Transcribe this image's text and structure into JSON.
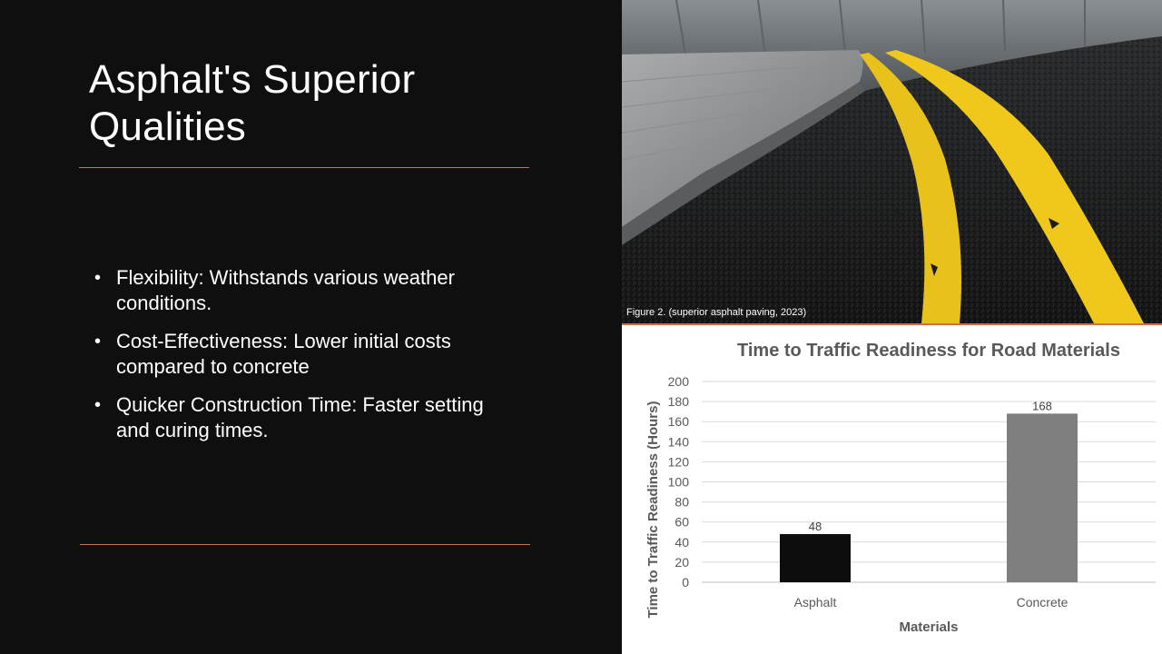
{
  "slide": {
    "title_line1": "Asphalt's Superior",
    "title_line2": "Qualities",
    "bullets": [
      "Flexibility: Withstands various weather conditions.",
      "Cost-Effectiveness: Lower initial costs compared to concrete",
      "Quicker Construction Time: Faster setting and curing times."
    ],
    "bullet_glyph": "•",
    "accent_color": "#c8734a"
  },
  "photo": {
    "caption": "Figure 2. (superior asphalt paving, 2023)"
  },
  "chart_data": {
    "type": "bar",
    "title": "Time to Traffic Readiness for Road Materials",
    "xlabel": "Materials",
    "ylabel": "Time to Traffic Readiness (Hours)",
    "categories": [
      "Asphalt",
      "Concrete"
    ],
    "values": [
      48,
      168
    ],
    "data_labels": [
      "48",
      "168"
    ],
    "colors": [
      "#0d0d0d",
      "#7f7f7f"
    ],
    "ylim": [
      0,
      200
    ],
    "yticks": [
      0,
      20,
      40,
      60,
      80,
      100,
      120,
      140,
      160,
      180,
      200
    ],
    "grid": true,
    "legend": "none"
  }
}
